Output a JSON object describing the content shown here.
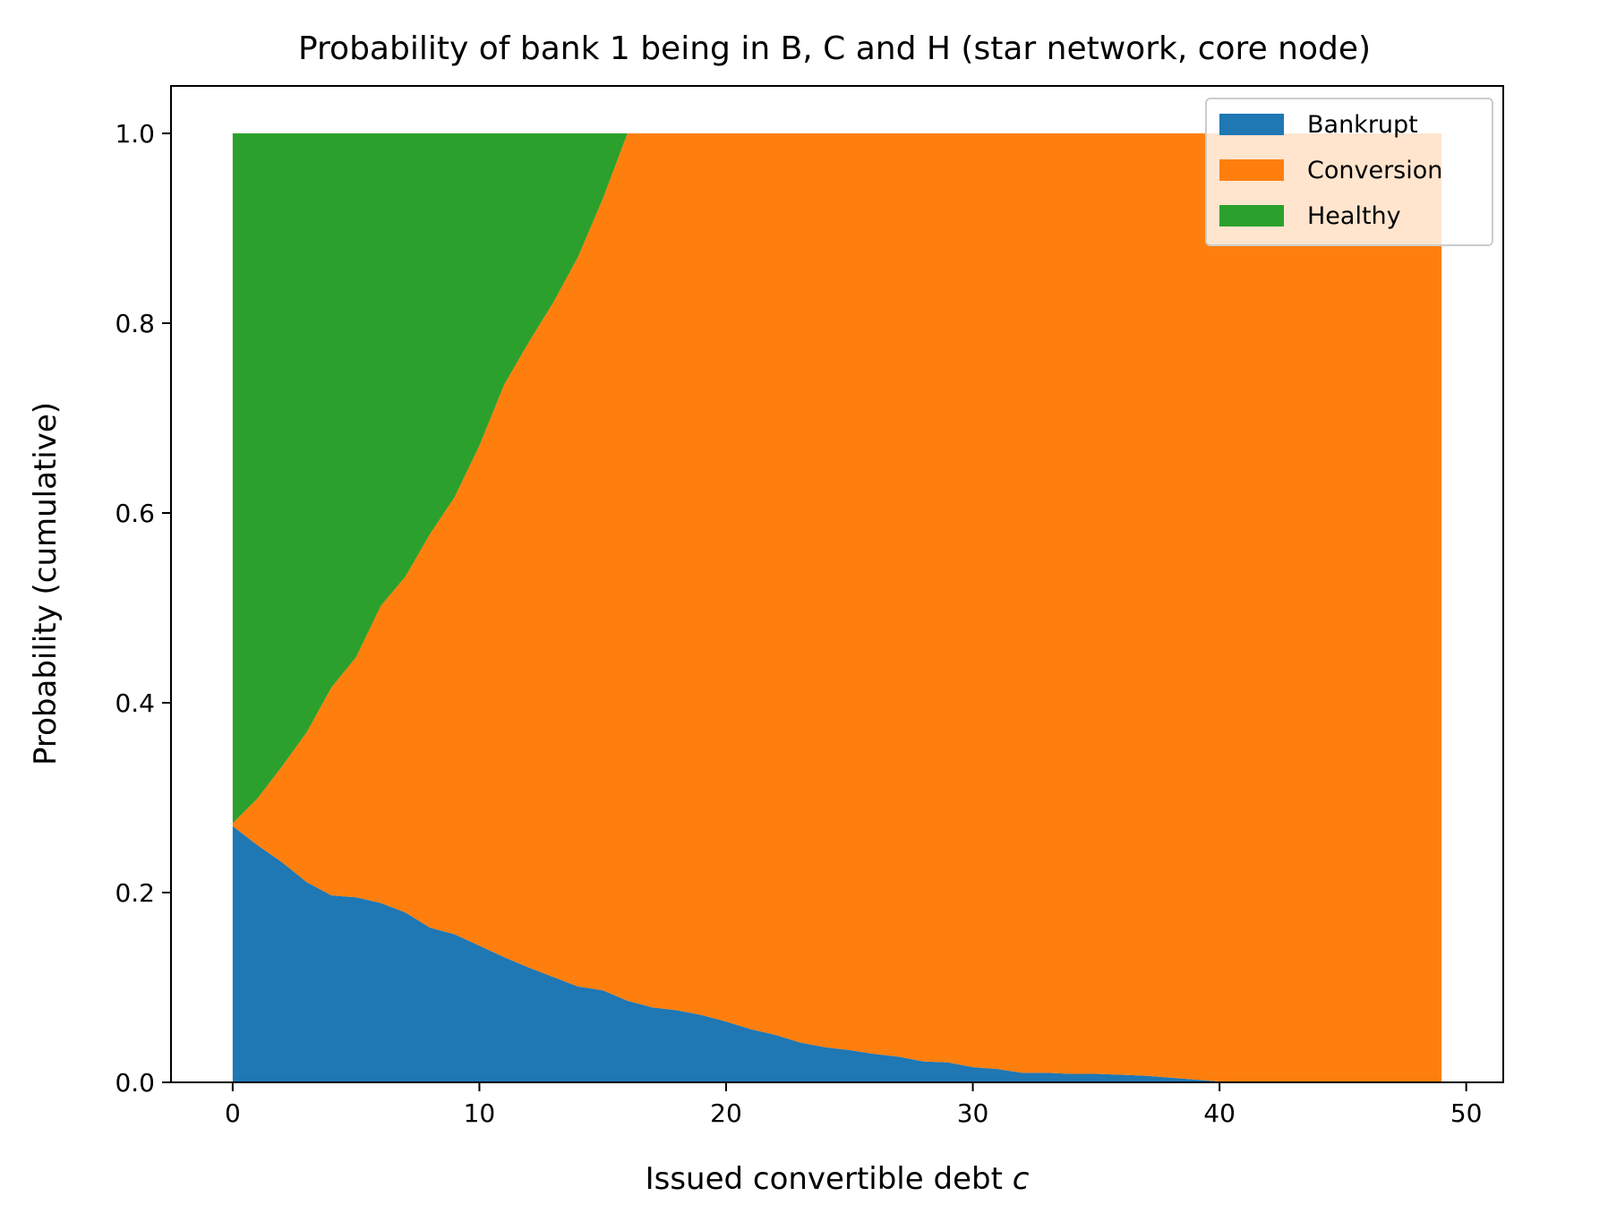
{
  "chart_data": {
    "type": "area",
    "stacked": true,
    "title": "Probability of bank 1 being in B, C and H (star network, core node)",
    "xlabel": "Issued convertible debt ",
    "xlabel_var": "c",
    "ylabel": "Probability (cumulative)",
    "xlim": [
      -2.5,
      51.5
    ],
    "ylim": [
      0.0,
      1.05
    ],
    "xticks": [
      0,
      10,
      20,
      30,
      40,
      50
    ],
    "xtick_labels": [
      "0",
      "10",
      "20",
      "30",
      "40",
      "50"
    ],
    "yticks": [
      0.0,
      0.2,
      0.4,
      0.6,
      0.8,
      1.0
    ],
    "ytick_labels": [
      "0.0",
      "0.2",
      "0.4",
      "0.6",
      "0.8",
      "1.0"
    ],
    "grid": false,
    "legend_position": "upper-right",
    "x": [
      0,
      1,
      2,
      3,
      4,
      5,
      6,
      7,
      8,
      9,
      10,
      11,
      12,
      13,
      14,
      15,
      16,
      17,
      18,
      19,
      20,
      21,
      22,
      23,
      24,
      25,
      26,
      27,
      28,
      29,
      30,
      31,
      32,
      33,
      34,
      35,
      36,
      37,
      38,
      39,
      40,
      41,
      42,
      43,
      44,
      45,
      46,
      47,
      48,
      49
    ],
    "series": [
      {
        "name": "Bankrupt",
        "color": "#1f77b4",
        "values": [
          0.27,
          0.25,
          0.232,
          0.211,
          0.197,
          0.195,
          0.189,
          0.179,
          0.163,
          0.156,
          0.144,
          0.132,
          0.121,
          0.111,
          0.101,
          0.097,
          0.086,
          0.079,
          0.076,
          0.071,
          0.064,
          0.056,
          0.05,
          0.042,
          0.037,
          0.034,
          0.03,
          0.027,
          0.022,
          0.021,
          0.016,
          0.014,
          0.01,
          0.01,
          0.009,
          0.009,
          0.008,
          0.007,
          0.005,
          0.003,
          0.001,
          0.001,
          0.001,
          0.0,
          0.0,
          0.0,
          0.0,
          0.0,
          0.0,
          0.0
        ]
      },
      {
        "name": "Conversion",
        "color": "#ff7f0e",
        "values": [
          0.003,
          0.049,
          0.101,
          0.158,
          0.219,
          0.253,
          0.313,
          0.354,
          0.415,
          0.461,
          0.527,
          0.603,
          0.659,
          0.711,
          0.769,
          0.834,
          0.914,
          0.921,
          0.924,
          0.929,
          0.936,
          0.944,
          0.95,
          0.958,
          0.963,
          0.966,
          0.97,
          0.973,
          0.978,
          0.979,
          0.984,
          0.986,
          0.99,
          0.99,
          0.991,
          0.991,
          0.992,
          0.993,
          0.995,
          0.997,
          0.999,
          0.999,
          0.999,
          1.0,
          1.0,
          1.0,
          1.0,
          1.0,
          1.0,
          1.0
        ]
      },
      {
        "name": "Healthy",
        "color": "#2ca02c",
        "values": [
          0.727,
          0.701,
          0.667,
          0.631,
          0.584,
          0.552,
          0.498,
          0.467,
          0.422,
          0.383,
          0.329,
          0.265,
          0.22,
          0.178,
          0.13,
          0.069,
          0.0,
          0.0,
          0.0,
          0.0,
          0.0,
          0.0,
          0.0,
          0.0,
          0.0,
          0.0,
          0.0,
          0.0,
          0.0,
          0.0,
          0.0,
          0.0,
          0.0,
          0.0,
          0.0,
          0.0,
          0.0,
          0.0,
          0.0,
          0.0,
          0.0,
          0.0,
          0.0,
          0.0,
          0.0,
          0.0,
          0.0,
          0.0,
          0.0,
          0.0
        ]
      }
    ]
  }
}
